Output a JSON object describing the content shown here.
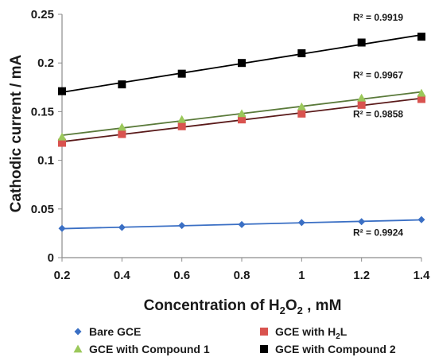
{
  "chart_data": {
    "type": "scatter",
    "xlabel_pre": "Concentration of H",
    "xlabel_sub1": "2",
    "xlabel_mid": "O",
    "xlabel_sub2": "2",
    "xlabel_post": " , mM",
    "ylabel": "Cathodic current / mA",
    "xlim": [
      0.2,
      1.4
    ],
    "ylim": [
      0,
      0.25
    ],
    "xticks": [
      "0.2",
      "0.4",
      "0.6",
      "0.8",
      "1",
      "1.2",
      "1.4"
    ],
    "xtick_values": [
      0.2,
      0.4,
      0.6,
      0.8,
      1.0,
      1.2,
      1.4
    ],
    "yticks": [
      "0",
      "0.05",
      "0.1",
      "0.15",
      "0.2",
      "0.25"
    ],
    "ytick_values": [
      0,
      0.05,
      0.1,
      0.15,
      0.2,
      0.25
    ],
    "grid": false,
    "legend_position": "bottom",
    "x": [
      0.2,
      0.4,
      0.6,
      0.8,
      1.0,
      1.2,
      1.4
    ],
    "series": [
      {
        "key": "bare",
        "legend": {
          "pre": "Bare GCE",
          "sub": "",
          "post": ""
        },
        "marker": "diamond",
        "marker_color": "#3a6fc4",
        "line_color": "#3a6fc4",
        "values": [
          0.03,
          0.031,
          0.033,
          0.034,
          0.036,
          0.037,
          0.039
        ],
        "r2": "R² = 0.9924"
      },
      {
        "key": "h2l",
        "legend": {
          "pre": "GCE with H",
          "sub": "2",
          "post": "L"
        },
        "marker": "square",
        "marker_color": "#d9534f",
        "line_color": "#5a1a1a",
        "values": [
          0.118,
          0.127,
          0.135,
          0.142,
          0.148,
          0.157,
          0.163
        ],
        "r2": "R² = 0.9858"
      },
      {
        "key": "c1",
        "legend": {
          "pre": "GCE with Compound 1",
          "sub": "",
          "post": ""
        },
        "marker": "triangle",
        "marker_color": "#9bc85a",
        "line_color": "#5a7a3a",
        "values": [
          0.124,
          0.134,
          0.142,
          0.148,
          0.155,
          0.164,
          0.169
        ],
        "r2": "R² = 0.9967"
      },
      {
        "key": "c2",
        "legend": {
          "pre": "GCE with  Compound 2",
          "sub": "",
          "post": ""
        },
        "marker": "square",
        "marker_color": "#000000",
        "line_color": "#000000",
        "values": [
          0.171,
          0.178,
          0.189,
          0.2,
          0.21,
          0.221,
          0.227
        ],
        "r2": "R² = 0.9919"
      }
    ]
  }
}
